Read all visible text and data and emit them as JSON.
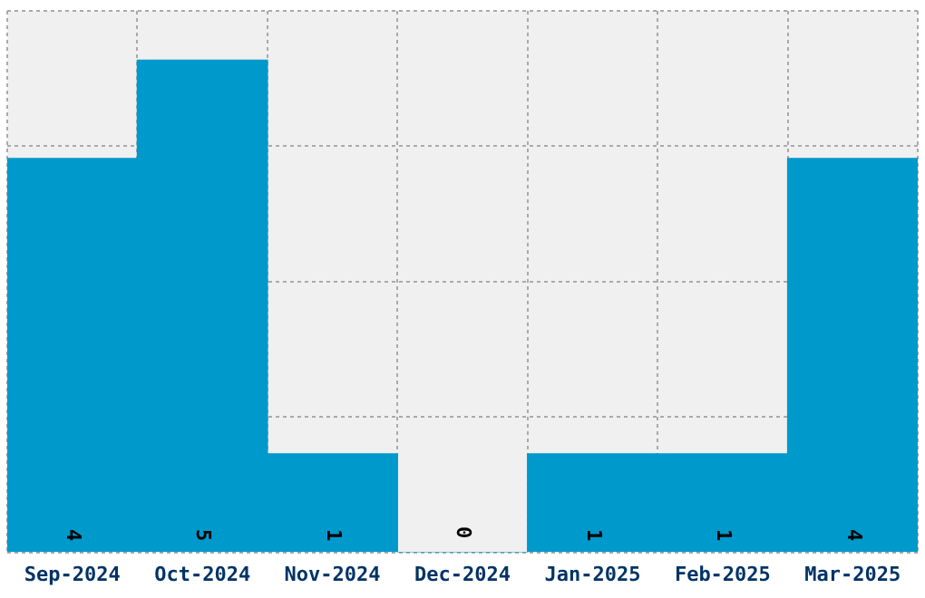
{
  "chart_data": {
    "type": "bar",
    "categories": [
      "Sep-2024",
      "Oct-2024",
      "Nov-2024",
      "Dec-2024",
      "Jan-2025",
      "Feb-2025",
      "Mar-2025"
    ],
    "values": [
      4,
      5,
      1,
      0,
      1,
      1,
      4
    ],
    "color": "#0099cc",
    "ylim": [
      0,
      5.5
    ],
    "yticks": [
      {
        "value": 0,
        "label": null
      },
      {
        "value": 1.375,
        "label": null
      },
      {
        "value": 2.75,
        "label": null
      },
      {
        "value": 4.125,
        "label": null
      },
      {
        "value": 5.5,
        "label": null
      }
    ],
    "tick_labels": "x",
    "grid": true,
    "data_labels": true
  }
}
